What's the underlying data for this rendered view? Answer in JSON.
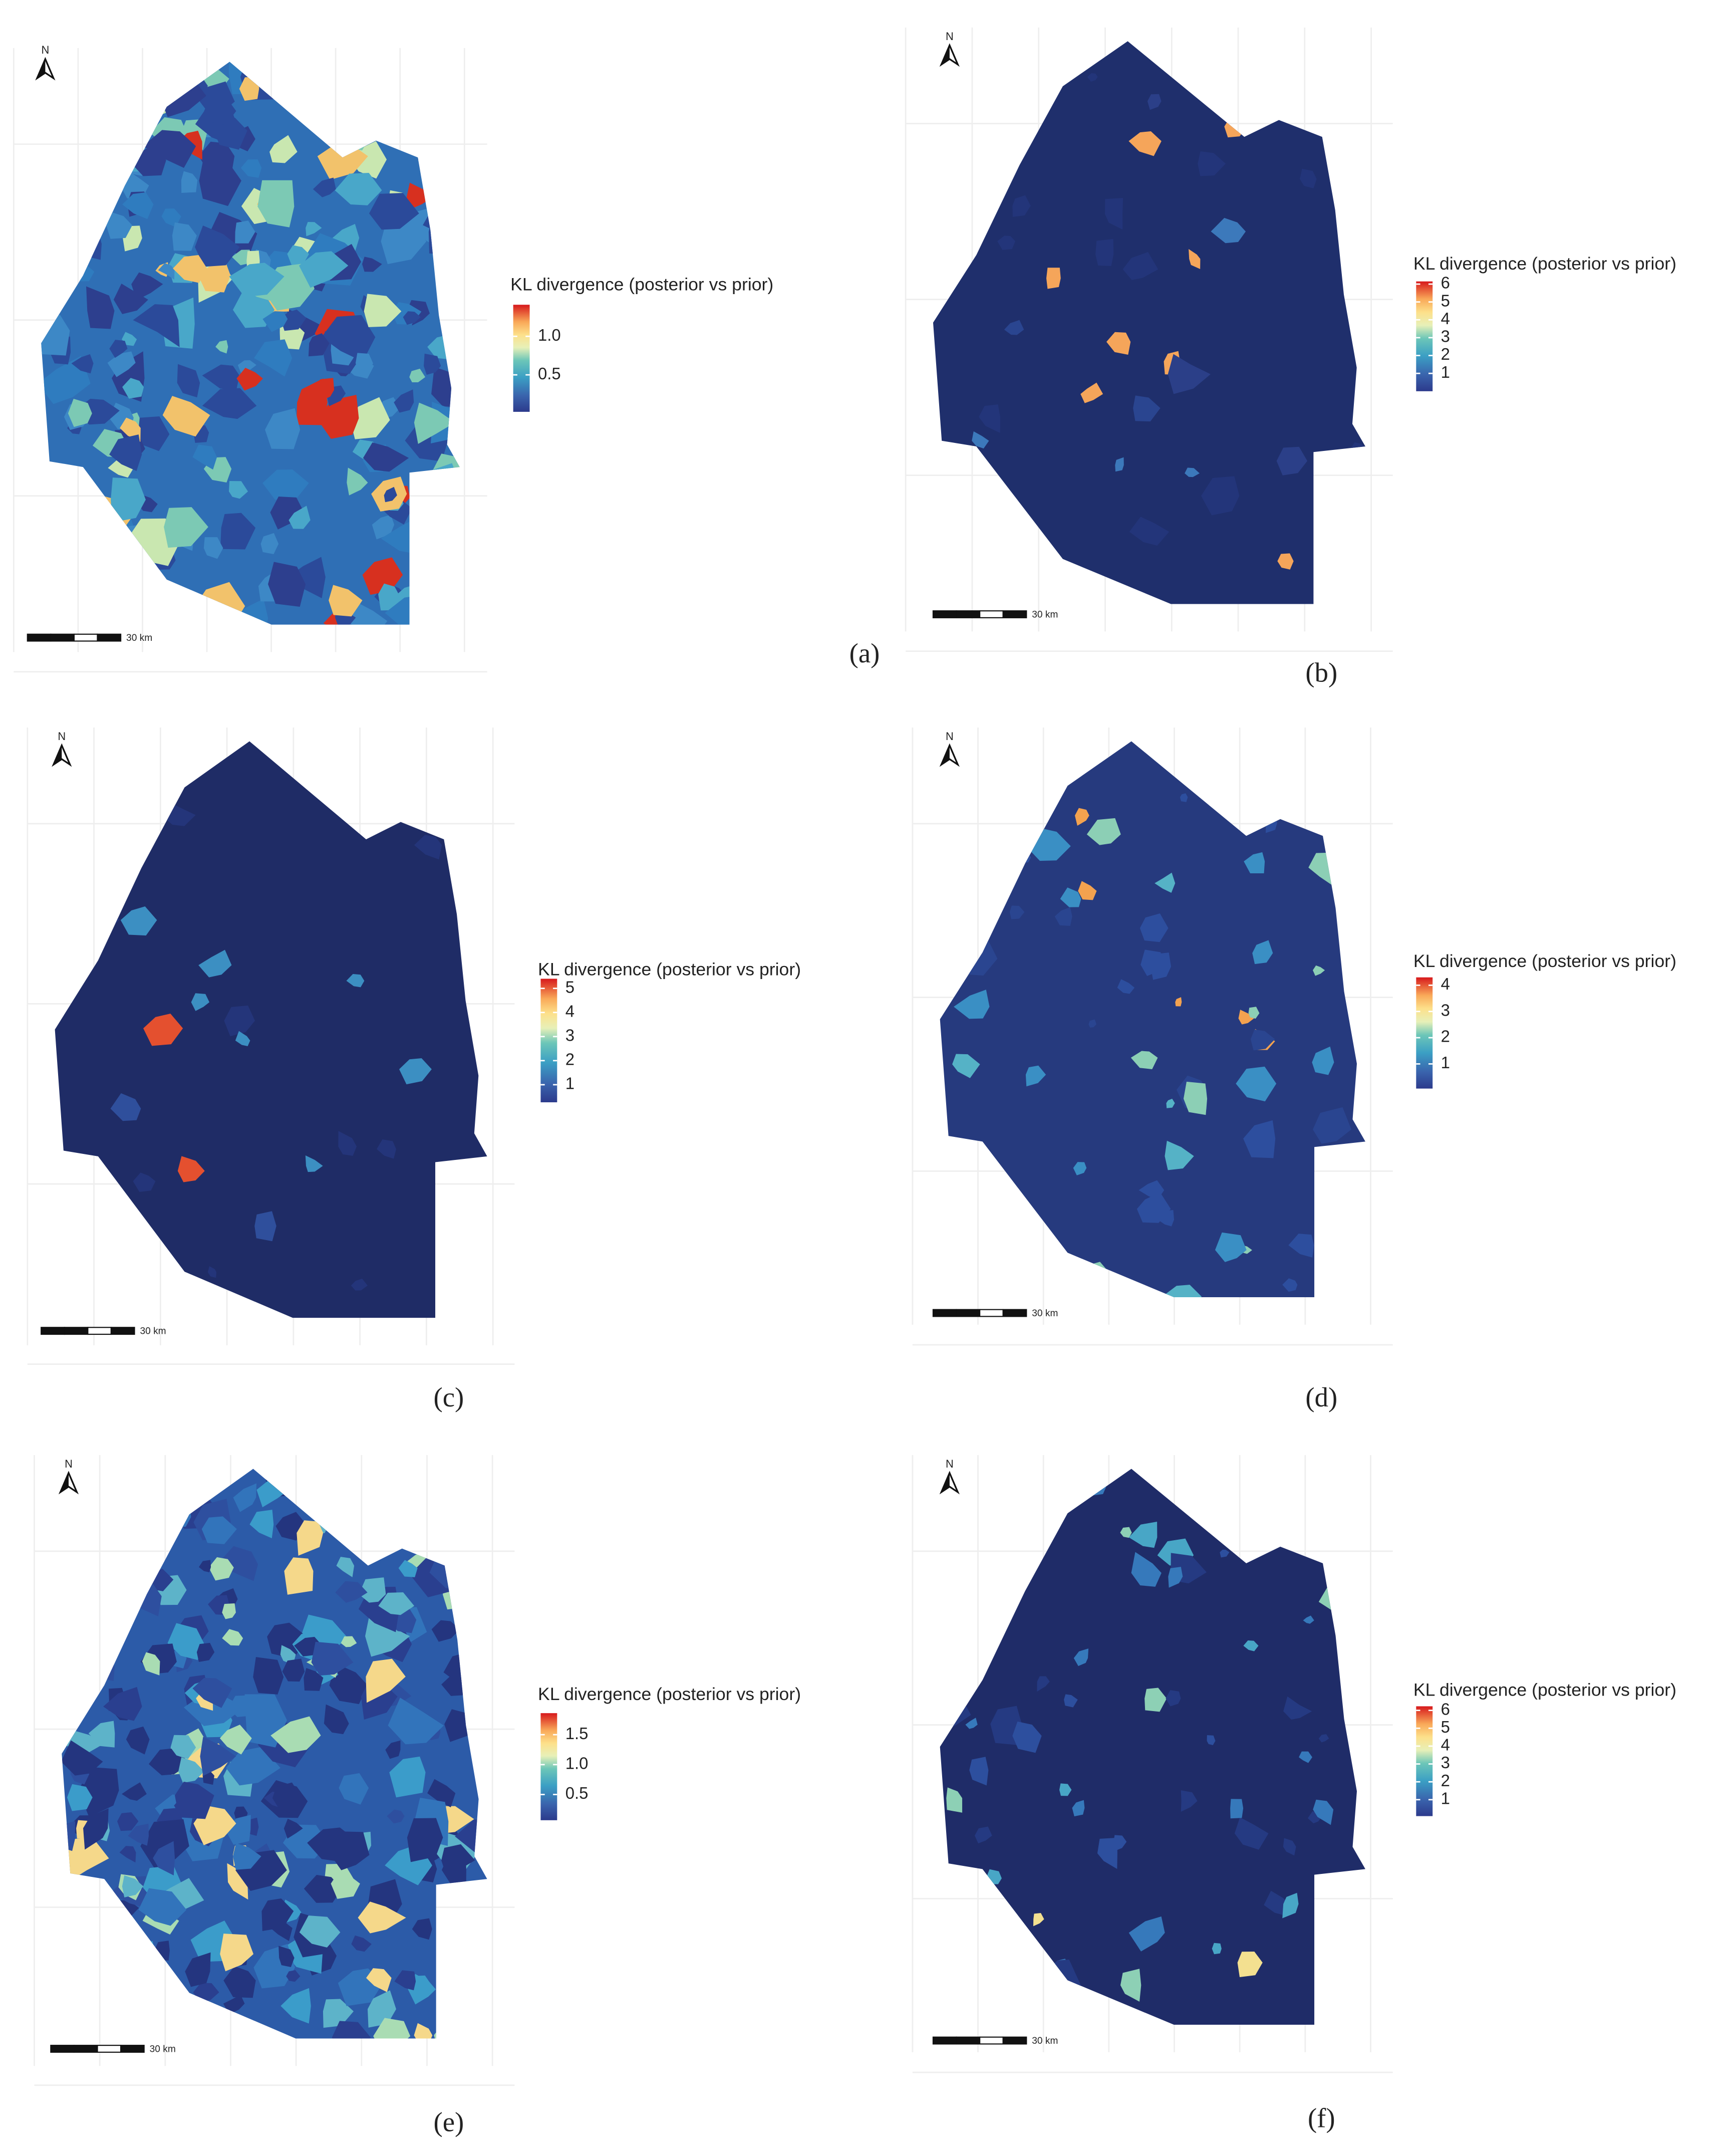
{
  "panels": [
    {
      "label": "(a)",
      "north": "N",
      "scale_label": "30 km",
      "legend": {
        "title": "KL divergence (posterior vs prior)",
        "lim": [
          0.02,
          1.41
        ],
        "ticks": [
          0.5,
          {
            "value": 1,
            "label": "1.0"
          }
        ]
      }
    },
    {
      "label": "(b)",
      "north": "N",
      "scale_label": "30 km",
      "legend": {
        "title": "KL divergence (posterior vs prior)",
        "lim": [
          0,
          6.15
        ],
        "ticks": [
          1,
          2,
          3,
          4,
          5,
          6
        ]
      }
    },
    {
      "label": "(c)",
      "north": "N",
      "scale_label": "30 km",
      "legend": {
        "title": "KL divergence (posterior vs prior)",
        "lim": [
          0.27,
          5.4
        ],
        "ticks": [
          1,
          2,
          3,
          4,
          5
        ]
      }
    },
    {
      "label": "(d)",
      "north": "N",
      "scale_label": "30 km",
      "legend": {
        "title": "KL divergence (posterior vs prior)",
        "lim": [
          0.06,
          4.3
        ],
        "ticks": [
          1,
          2,
          3,
          4
        ]
      }
    },
    {
      "label": "(e)",
      "north": "N",
      "scale_label": "30 km",
      "legend": {
        "title": "KL divergence (posterior vs prior)",
        "lim": [
          0.07,
          1.86
        ],
        "ticks": [
          0.5,
          {
            "value": 1,
            "label": "1.0"
          },
          1.5
        ]
      }
    },
    {
      "label": "(f)",
      "north": "N",
      "scale_label": "30 km",
      "legend": {
        "title": "KL divergence (posterior vs prior)",
        "lim": [
          0.08,
          6.23
        ],
        "ticks": [
          1,
          2,
          3,
          4,
          5,
          6
        ]
      }
    }
  ]
}
